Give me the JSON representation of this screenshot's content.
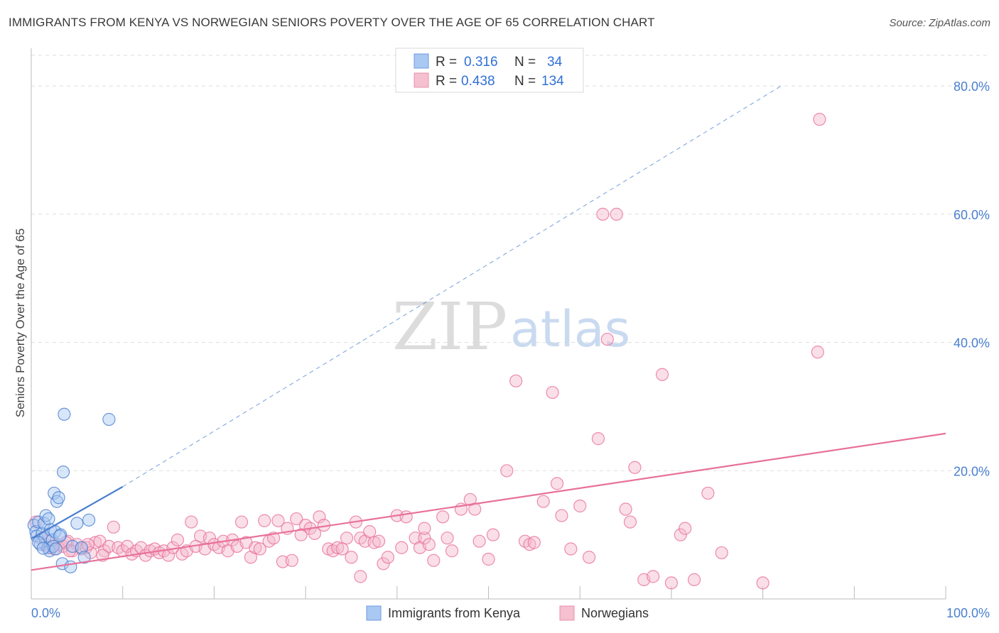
{
  "title": "IMMIGRANTS FROM KENYA VS NORWEGIAN SENIORS POVERTY OVER THE AGE OF 65 CORRELATION CHART",
  "source": "Source: ZipAtlas.com",
  "watermark": {
    "zip": "ZIP",
    "atlas": "atlas"
  },
  "legend": {
    "r_label": "R =",
    "n_label": "N =",
    "rows": [
      {
        "series": "Immigrants from Kenya",
        "r": "0.316",
        "n": "34"
      },
      {
        "series": "Norwegians",
        "r": "0.438",
        "n": "134"
      }
    ]
  },
  "bottom_legend": [
    "Immigrants from Kenya",
    "Norwegians"
  ],
  "colors": {
    "blue": "#4a7fd0",
    "blue_fill": "#a9c8f2",
    "pink": "#e8709a",
    "pink_fill": "#f5b8cb"
  },
  "chart_data": {
    "type": "scatter",
    "title": "IMMIGRANTS FROM KENYA VS NORWEGIAN SENIORS POVERTY OVER THE AGE OF 65 CORRELATION CHART",
    "xlabel": "",
    "ylabel": "Seniors Poverty Over the Age of 65",
    "xlim": [
      0,
      100
    ],
    "ylim": [
      0,
      85
    ],
    "x_tick_labels": [
      "0.0%",
      "100.0%"
    ],
    "y_ticks": [
      20,
      40,
      60,
      80
    ],
    "y_tick_labels": [
      "20.0%",
      "40.0%",
      "60.0%",
      "80.0%"
    ],
    "series": [
      {
        "name": "Immigrants from Kenya",
        "color": "blue",
        "points": [
          [
            0.3,
            11.5
          ],
          [
            0.5,
            10.5
          ],
          [
            0.6,
            9.8
          ],
          [
            0.8,
            12.0
          ],
          [
            1.0,
            8.5
          ],
          [
            1.2,
            10.2
          ],
          [
            1.4,
            11.8
          ],
          [
            1.5,
            9.5
          ],
          [
            1.6,
            13.0
          ],
          [
            1.8,
            8.0
          ],
          [
            1.9,
            12.5
          ],
          [
            2.0,
            7.5
          ],
          [
            2.1,
            10.8
          ],
          [
            2.3,
            9.2
          ],
          [
            2.4,
            8.2
          ],
          [
            2.5,
            16.5
          ],
          [
            2.6,
            10.5
          ],
          [
            2.7,
            7.8
          ],
          [
            2.8,
            15.2
          ],
          [
            3.0,
            15.8
          ],
          [
            3.2,
            10.0
          ],
          [
            3.5,
            19.8
          ],
          [
            3.6,
            28.8
          ],
          [
            3.4,
            5.5
          ],
          [
            4.3,
            5.0
          ],
          [
            4.5,
            8.2
          ],
          [
            5.0,
            11.8
          ],
          [
            5.5,
            8.0
          ],
          [
            5.8,
            6.5
          ],
          [
            6.3,
            12.3
          ],
          [
            8.5,
            28.0
          ],
          [
            0.8,
            8.8
          ],
          [
            1.3,
            7.9
          ],
          [
            3.1,
            9.8
          ]
        ],
        "trend": {
          "x0": 0,
          "y0": 9.4,
          "x1": 10,
          "y1": 17.5
        },
        "trend_ext": {
          "x0": 10,
          "y0": 17.5,
          "x1": 82,
          "y1": 80
        }
      },
      {
        "name": "Norwegians",
        "color": "pink",
        "points": [
          [
            0.5,
            12.0
          ],
          [
            1.0,
            9.5
          ],
          [
            1.5,
            8.5
          ],
          [
            2.0,
            8.0
          ],
          [
            2.5,
            7.8
          ],
          [
            3.0,
            8.5
          ],
          [
            3.5,
            8.2
          ],
          [
            4.0,
            9.0
          ],
          [
            4.5,
            7.5
          ],
          [
            5.0,
            8.5
          ],
          [
            5.5,
            7.8
          ],
          [
            6.0,
            8.0
          ],
          [
            6.5,
            7.2
          ],
          [
            7.0,
            8.8
          ],
          [
            7.5,
            9.0
          ],
          [
            8.0,
            7.5
          ],
          [
            8.5,
            8.2
          ],
          [
            9.0,
            11.2
          ],
          [
            9.5,
            8.0
          ],
          [
            10.0,
            7.5
          ],
          [
            10.5,
            8.2
          ],
          [
            11.0,
            7.0
          ],
          [
            11.5,
            7.5
          ],
          [
            12.0,
            8.0
          ],
          [
            12.5,
            6.8
          ],
          [
            13.0,
            7.5
          ],
          [
            13.5,
            7.8
          ],
          [
            14.0,
            7.2
          ],
          [
            14.5,
            7.5
          ],
          [
            15.0,
            6.8
          ],
          [
            15.5,
            8.0
          ],
          [
            16.0,
            9.2
          ],
          [
            16.5,
            7.0
          ],
          [
            17.0,
            7.5
          ],
          [
            17.5,
            12.0
          ],
          [
            18.0,
            8.2
          ],
          [
            18.5,
            9.8
          ],
          [
            19.0,
            7.8
          ],
          [
            19.5,
            9.5
          ],
          [
            20.0,
            8.5
          ],
          [
            20.5,
            8.0
          ],
          [
            21.0,
            9.0
          ],
          [
            21.5,
            7.5
          ],
          [
            22.0,
            9.2
          ],
          [
            22.5,
            8.2
          ],
          [
            23.0,
            12.0
          ],
          [
            23.5,
            8.8
          ],
          [
            24.0,
            6.5
          ],
          [
            24.5,
            8.0
          ],
          [
            25.0,
            7.8
          ],
          [
            25.5,
            12.2
          ],
          [
            26.0,
            9.0
          ],
          [
            26.5,
            9.5
          ],
          [
            27.0,
            12.2
          ],
          [
            27.5,
            5.8
          ],
          [
            28.0,
            11.0
          ],
          [
            28.5,
            6.0
          ],
          [
            29.0,
            12.5
          ],
          [
            29.5,
            10.0
          ],
          [
            30.0,
            11.5
          ],
          [
            30.5,
            11.0
          ],
          [
            31.0,
            10.2
          ],
          [
            31.5,
            12.8
          ],
          [
            32.0,
            11.5
          ],
          [
            32.5,
            7.8
          ],
          [
            33.0,
            7.5
          ],
          [
            33.5,
            8.0
          ],
          [
            34.0,
            7.8
          ],
          [
            34.5,
            9.5
          ],
          [
            35.0,
            6.5
          ],
          [
            35.5,
            12.0
          ],
          [
            36.0,
            9.5
          ],
          [
            36.5,
            9.0
          ],
          [
            37.0,
            10.5
          ],
          [
            37.5,
            8.8
          ],
          [
            38.0,
            9.0
          ],
          [
            38.5,
            5.5
          ],
          [
            39.0,
            6.5
          ],
          [
            40.0,
            13.0
          ],
          [
            40.5,
            8.0
          ],
          [
            41.0,
            12.8
          ],
          [
            42.0,
            9.5
          ],
          [
            42.5,
            8.0
          ],
          [
            43.0,
            9.5
          ],
          [
            43.5,
            8.5
          ],
          [
            44.0,
            6.0
          ],
          [
            45.0,
            12.8
          ],
          [
            45.5,
            9.5
          ],
          [
            46.0,
            7.5
          ],
          [
            47.0,
            14.0
          ],
          [
            48.0,
            15.5
          ],
          [
            48.5,
            14.0
          ],
          [
            49.0,
            9.0
          ],
          [
            50.0,
            6.2
          ],
          [
            50.5,
            10.0
          ],
          [
            52.0,
            20.0
          ],
          [
            53.0,
            34.0
          ],
          [
            54.0,
            9.0
          ],
          [
            54.5,
            8.5
          ],
          [
            55.0,
            8.8
          ],
          [
            56.0,
            15.2
          ],
          [
            57.0,
            32.2
          ],
          [
            57.5,
            18.0
          ],
          [
            58.0,
            13.0
          ],
          [
            59.0,
            7.8
          ],
          [
            60.0,
            14.5
          ],
          [
            61.0,
            6.5
          ],
          [
            62.0,
            25.0
          ],
          [
            62.5,
            60.0
          ],
          [
            63.0,
            40.5
          ],
          [
            64.0,
            60.0
          ],
          [
            65.0,
            14.0
          ],
          [
            65.5,
            12.0
          ],
          [
            66.0,
            20.5
          ],
          [
            67.0,
            3.0
          ],
          [
            68.0,
            3.5
          ],
          [
            69.0,
            35.0
          ],
          [
            70.0,
            2.5
          ],
          [
            71.0,
            10.0
          ],
          [
            71.5,
            11.0
          ],
          [
            72.5,
            3.0
          ],
          [
            74.0,
            16.5
          ],
          [
            75.5,
            7.2
          ],
          [
            80.0,
            2.5
          ],
          [
            86.0,
            38.5
          ],
          [
            2.2,
            8.0
          ],
          [
            1.8,
            9.0
          ],
          [
            3.8,
            8.8
          ],
          [
            4.2,
            7.5
          ],
          [
            6.2,
            8.5
          ],
          [
            7.8,
            6.8
          ],
          [
            86.2,
            74.8
          ],
          [
            36.0,
            3.5
          ],
          [
            43.0,
            11.0
          ]
        ],
        "trend": {
          "x0": 0,
          "y0": 4.5,
          "x1": 100,
          "y1": 25.8
        }
      }
    ]
  }
}
